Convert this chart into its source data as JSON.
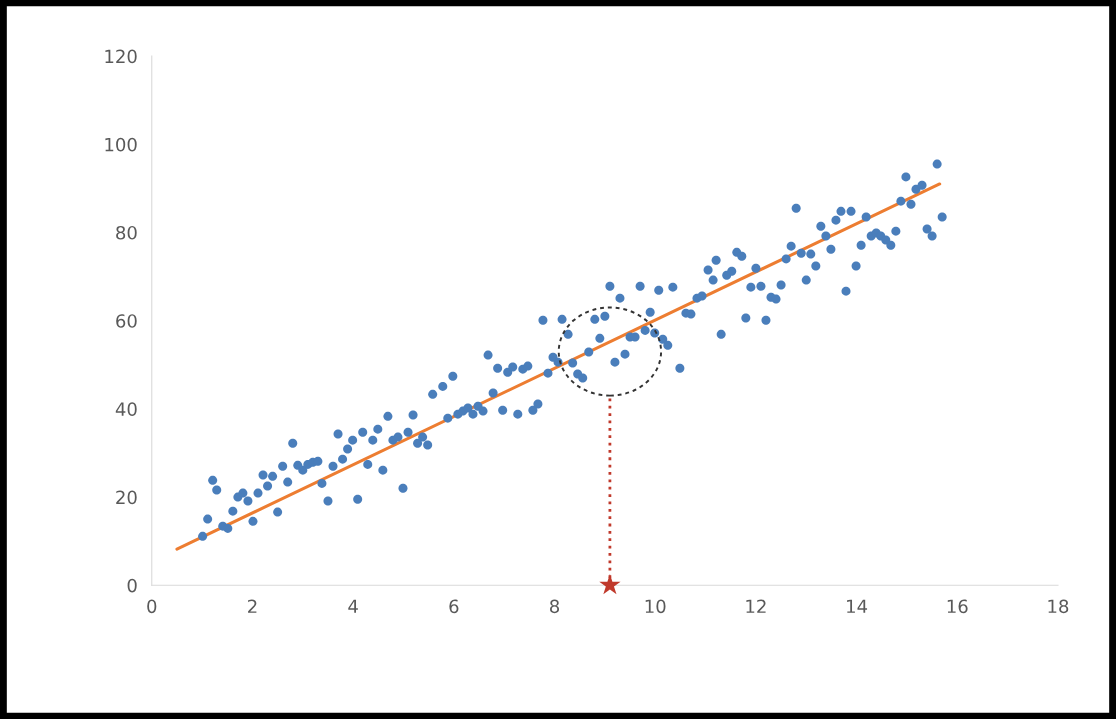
{
  "chart_data": {
    "type": "scatter",
    "xlim": [
      0,
      18
    ],
    "ylim": [
      0,
      120
    ],
    "xticks": [
      0,
      2,
      4,
      6,
      8,
      10,
      12,
      14,
      16,
      18
    ],
    "yticks": [
      0,
      20,
      40,
      60,
      80,
      100,
      120
    ],
    "grid": false,
    "legend": false,
    "series": [
      {
        "color": "#4a7ebb",
        "marker": "circle",
        "x": [
          1.01,
          1.11,
          1.21,
          1.29,
          1.41,
          1.51,
          1.61,
          1.71,
          1.81,
          1.91,
          2.01,
          2.11,
          2.21,
          2.3,
          2.4,
          2.5,
          2.6,
          2.7,
          2.8,
          2.9,
          3.0,
          3.1,
          3.2,
          3.3,
          3.38,
          3.5,
          3.6,
          3.7,
          3.79,
          3.89,
          3.99,
          4.09,
          4.19,
          4.29,
          4.39,
          4.49,
          4.59,
          4.69,
          4.79,
          4.89,
          4.99,
          5.09,
          5.19,
          5.28,
          5.38,
          5.48,
          5.58,
          5.78,
          5.88,
          5.98,
          6.08,
          6.18,
          6.28,
          6.38,
          6.48,
          6.58,
          6.68,
          6.78,
          6.87,
          6.97,
          7.07,
          7.17,
          7.27,
          7.37,
          7.47,
          7.57,
          7.67,
          7.77,
          7.87,
          7.97,
          8.07,
          8.15,
          8.27,
          8.36,
          8.46,
          8.56,
          8.68,
          8.8,
          8.9,
          9.0,
          9.1,
          9.2,
          9.3,
          9.4,
          9.5,
          9.6,
          9.7,
          9.8,
          9.9,
          9.99,
          10.07,
          10.15,
          10.25,
          10.35,
          10.49,
          10.61,
          10.71,
          10.83,
          10.93,
          11.05,
          11.15,
          11.21,
          11.31,
          11.42,
          11.52,
          11.62,
          11.72,
          11.8,
          11.9,
          12.0,
          12.1,
          12.2,
          12.3,
          12.4,
          12.5,
          12.6,
          12.7,
          12.8,
          12.9,
          13.0,
          13.09,
          13.19,
          13.29,
          13.39,
          13.49,
          13.59,
          13.69,
          13.79,
          13.89,
          13.99,
          14.09,
          14.19,
          14.29,
          14.39,
          14.48,
          14.58,
          14.68,
          14.78,
          14.88,
          14.98,
          15.08,
          15.18,
          15.3,
          15.4,
          15.5,
          15.6,
          15.7
        ],
        "values": [
          11.1,
          15.0,
          23.8,
          21.6,
          13.4,
          12.9,
          16.8,
          20.0,
          20.9,
          19.1,
          14.5,
          20.9,
          25.0,
          22.5,
          24.7,
          16.6,
          27.0,
          23.4,
          32.2,
          27.2,
          26.1,
          27.4,
          27.9,
          28.1,
          23.1,
          19.1,
          27.0,
          34.3,
          28.6,
          30.9,
          32.9,
          19.5,
          34.7,
          27.4,
          32.9,
          35.4,
          26.1,
          38.3,
          32.9,
          33.6,
          22.0,
          34.7,
          38.6,
          32.2,
          33.6,
          31.8,
          43.3,
          45.1,
          37.9,
          47.4,
          38.8,
          39.5,
          40.2,
          38.8,
          40.6,
          39.5,
          52.2,
          43.6,
          49.2,
          39.7,
          48.3,
          49.5,
          38.8,
          49.0,
          49.7,
          39.7,
          41.1,
          60.1,
          48.1,
          51.7,
          50.6,
          60.3,
          56.9,
          50.4,
          47.9,
          47.0,
          52.9,
          60.3,
          56.0,
          61.0,
          67.8,
          50.6,
          65.1,
          52.4,
          56.3,
          56.3,
          67.8,
          57.8,
          61.9,
          57.2,
          66.9,
          55.8,
          54.4,
          67.6,
          49.2,
          61.7,
          61.5,
          65.1,
          65.6,
          71.5,
          69.2,
          73.7,
          56.9,
          70.3,
          71.2,
          75.5,
          74.6,
          60.6,
          67.6,
          71.9,
          67.8,
          60.1,
          65.3,
          64.9,
          68.1,
          74.0,
          76.9,
          85.5,
          75.3,
          69.2,
          75.1,
          72.4,
          81.4,
          79.2,
          76.2,
          82.8,
          84.8,
          66.7,
          84.8,
          72.4,
          77.1,
          83.5,
          79.2,
          79.9,
          79.2,
          78.3,
          77.1,
          80.3,
          87.1,
          92.6,
          86.4,
          89.8,
          90.7,
          80.8,
          79.2,
          95.5,
          83.5
        ]
      },
      {
        "type": "line",
        "color": "#ed7d31",
        "line_style": "solid",
        "marker": "none",
        "x": [
          0.5,
          15.65
        ],
        "values": [
          8.2,
          91.0
        ]
      },
      {
        "type": "line",
        "color": "#c0392b",
        "line_style": "dotted",
        "marker": "none",
        "x": [
          9.1,
          9.1
        ],
        "values": [
          0,
          43
        ]
      },
      {
        "type": "scatter",
        "color": "#c0392b",
        "marker": "star",
        "x": [
          9.1
        ],
        "values": [
          0
        ]
      }
    ]
  }
}
